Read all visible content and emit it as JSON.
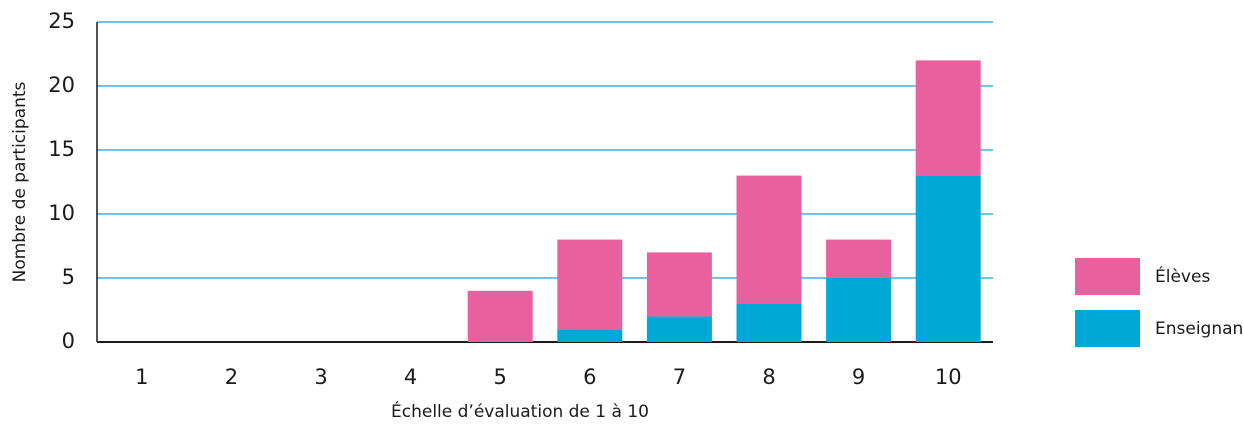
{
  "chart_data": {
    "type": "stacked_bar",
    "x_label": "Échelle d’évaluation de 1 à 10",
    "y_label": "Nombre de participants",
    "categories": [
      "1",
      "2",
      "3",
      "4",
      "5",
      "6",
      "7",
      "8",
      "9",
      "10"
    ],
    "series": [
      {
        "name": "Enseignant",
        "color": "#00a8d6",
        "values": [
          0,
          0,
          0,
          0,
          0,
          1,
          2,
          3,
          5,
          13
        ]
      },
      {
        "name": "Élèves",
        "color": "#e9609f",
        "values": [
          0,
          0,
          0,
          0,
          4,
          7,
          5,
          10,
          3,
          9
        ]
      }
    ],
    "ylim": [
      0,
      25
    ],
    "yticks": [
      0,
      5,
      10,
      15,
      20,
      25
    ],
    "grid": true,
    "legend": "right"
  }
}
